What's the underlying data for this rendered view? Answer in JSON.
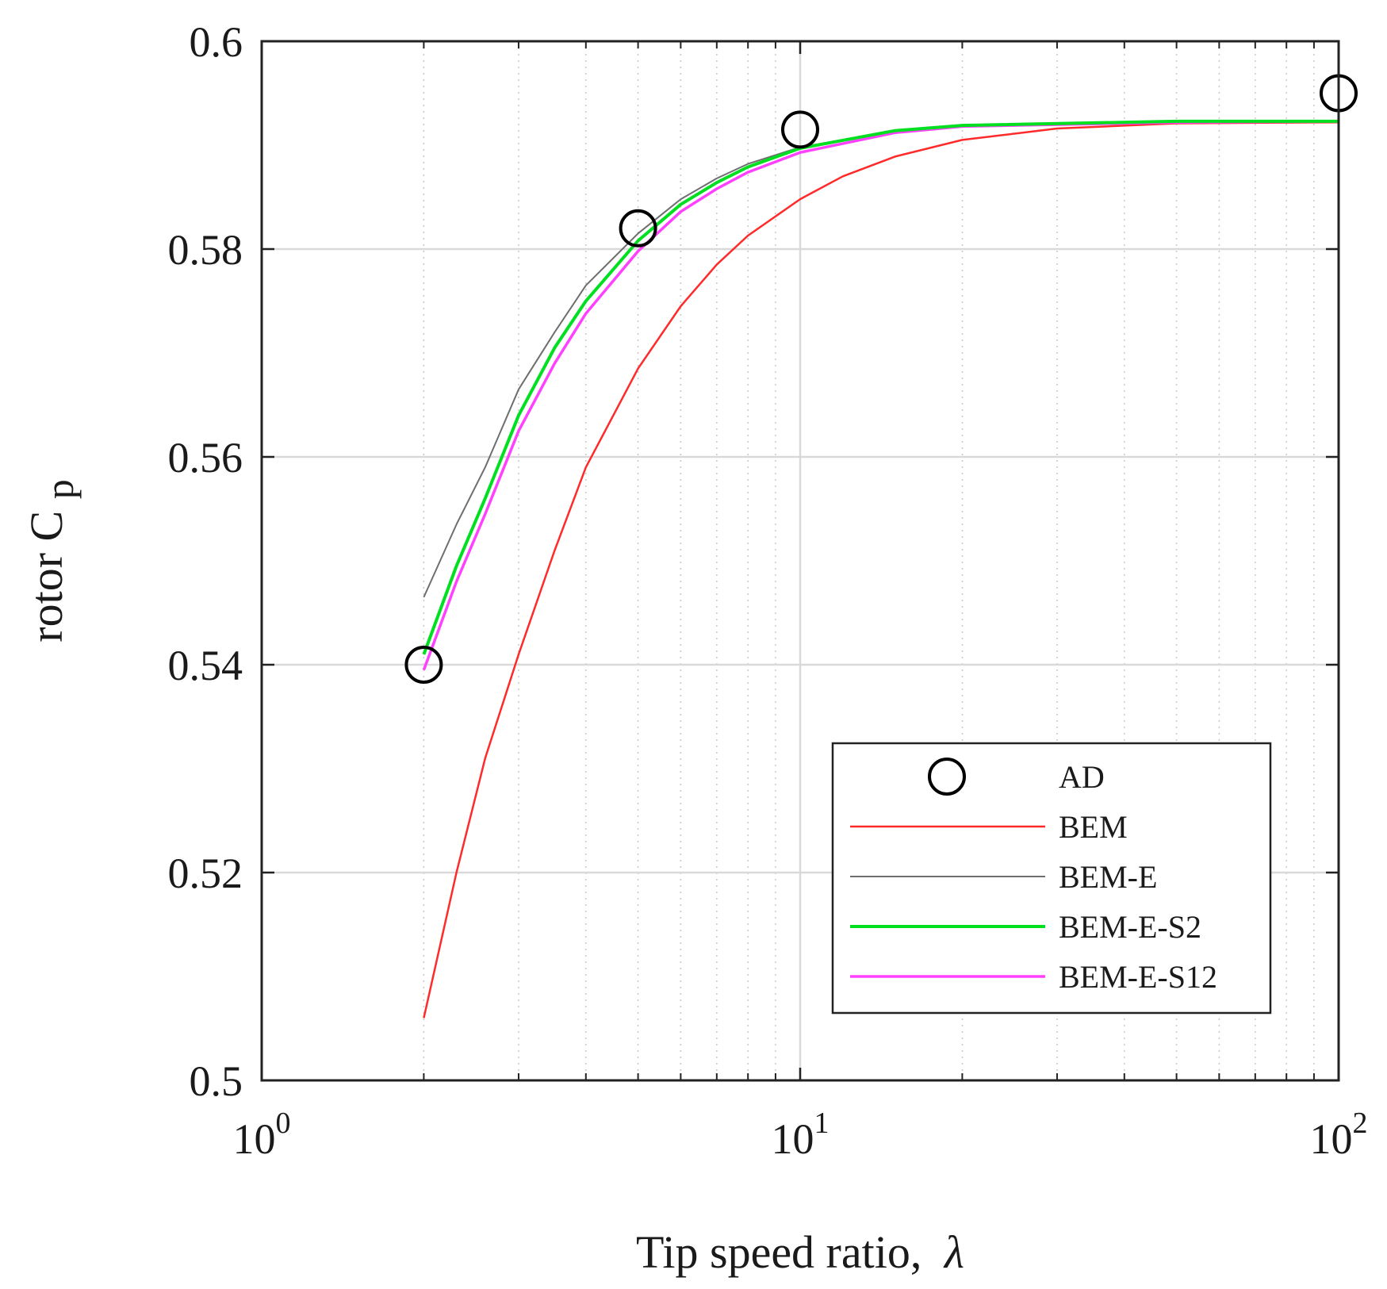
{
  "chart_data": {
    "type": "line",
    "xscale": "log",
    "xlim": [
      1,
      100
    ],
    "ylim": [
      0.5,
      0.6
    ],
    "xlabel": "Tip speed ratio,",
    "xlabel_symbol": "λ",
    "ylabel": "rotor C",
    "ylabel_sub": "p",
    "x_ticks": [
      {
        "value": 1,
        "base": "10",
        "exp": "0"
      },
      {
        "value": 10,
        "base": "10",
        "exp": "1"
      },
      {
        "value": 100,
        "base": "10",
        "exp": "2"
      }
    ],
    "y_ticks": [
      {
        "value": 0.5,
        "label": "0.5"
      },
      {
        "value": 0.52,
        "label": "0.52"
      },
      {
        "value": 0.54,
        "label": "0.54"
      },
      {
        "value": 0.56,
        "label": "0.56"
      },
      {
        "value": 0.58,
        "label": "0.58"
      },
      {
        "value": 0.6,
        "label": "0.6"
      }
    ],
    "grid": true,
    "legend_position": "bottom-right",
    "series": [
      {
        "name": "AD",
        "style": "marker",
        "color": "#000000",
        "x": [
          2,
          5,
          10,
          100
        ],
        "y": [
          0.54,
          0.582,
          0.5915,
          0.595
        ]
      },
      {
        "name": "BEM",
        "style": "line",
        "color": "#ff2a2a",
        "x": [
          2,
          2.3,
          2.6,
          3,
          3.5,
          4,
          5,
          6,
          7,
          8,
          10,
          12,
          15,
          20,
          30,
          50,
          100
        ],
        "y": [
          0.506,
          0.52,
          0.531,
          0.541,
          0.551,
          0.559,
          0.5685,
          0.5745,
          0.5785,
          0.5813,
          0.5848,
          0.587,
          0.5889,
          0.5905,
          0.5916,
          0.5921,
          0.5922
        ]
      },
      {
        "name": "BEM-E",
        "style": "line",
        "color": "#6e6e6e",
        "x": [
          2,
          2.3,
          2.6,
          3,
          3.5,
          4,
          5,
          6,
          7,
          8,
          10,
          15,
          20,
          50,
          100
        ],
        "y": [
          0.5465,
          0.5535,
          0.559,
          0.5665,
          0.572,
          0.5765,
          0.5815,
          0.5848,
          0.5868,
          0.5882,
          0.5898,
          0.5914,
          0.5919,
          0.5923,
          0.5923
        ]
      },
      {
        "name": "BEM-E-S2",
        "style": "line",
        "color": "#00e020",
        "x": [
          2,
          2.3,
          2.6,
          3,
          3.5,
          4,
          5,
          6,
          7,
          8,
          10,
          15,
          20,
          50,
          100
        ],
        "y": [
          0.541,
          0.5495,
          0.556,
          0.564,
          0.5705,
          0.575,
          0.5808,
          0.5843,
          0.5864,
          0.5879,
          0.5897,
          0.5914,
          0.5919,
          0.5923,
          0.5923
        ]
      },
      {
        "name": "BEM-E-S12",
        "style": "line",
        "color": "#ff40ff",
        "x": [
          2,
          2.3,
          2.6,
          3,
          3.5,
          4,
          5,
          6,
          7,
          8,
          10,
          15,
          20,
          50,
          100
        ],
        "y": [
          0.5395,
          0.548,
          0.5545,
          0.5625,
          0.569,
          0.5738,
          0.5798,
          0.5836,
          0.5858,
          0.5874,
          0.5893,
          0.5912,
          0.5918,
          0.5922,
          0.5923
        ]
      }
    ]
  }
}
